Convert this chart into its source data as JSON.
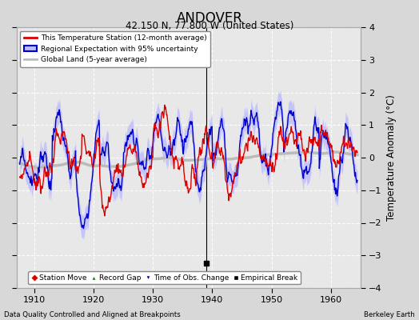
{
  "title": "ANDOVER",
  "subtitle": "42.150 N, 77.800 W (United States)",
  "ylabel": "Temperature Anomaly (°C)",
  "xlabel_left": "Data Quality Controlled and Aligned at Breakpoints",
  "xlabel_right": "Berkeley Earth",
  "ylim": [
    -4,
    4
  ],
  "xlim": [
    1907,
    1965
  ],
  "xticks": [
    1910,
    1920,
    1930,
    1940,
    1950,
    1960
  ],
  "yticks": [
    -4,
    -3,
    -2,
    -1,
    0,
    1,
    2,
    3,
    4
  ],
  "bg_color": "#d8d8d8",
  "plot_bg_color": "#e8e8e8",
  "grid_color": "#ffffff",
  "red_color": "#dd0000",
  "blue_color": "#0000cc",
  "blue_fill_color": "#bbbbff",
  "gray_color": "#bbbbbb",
  "empirical_break_year": 1939.0,
  "empirical_break_value": -3.25,
  "vertical_line_year": 1939.0,
  "legend_items": [
    "This Temperature Station (12-month average)",
    "Regional Expectation with 95% uncertainty",
    "Global Land (5-year average)"
  ]
}
